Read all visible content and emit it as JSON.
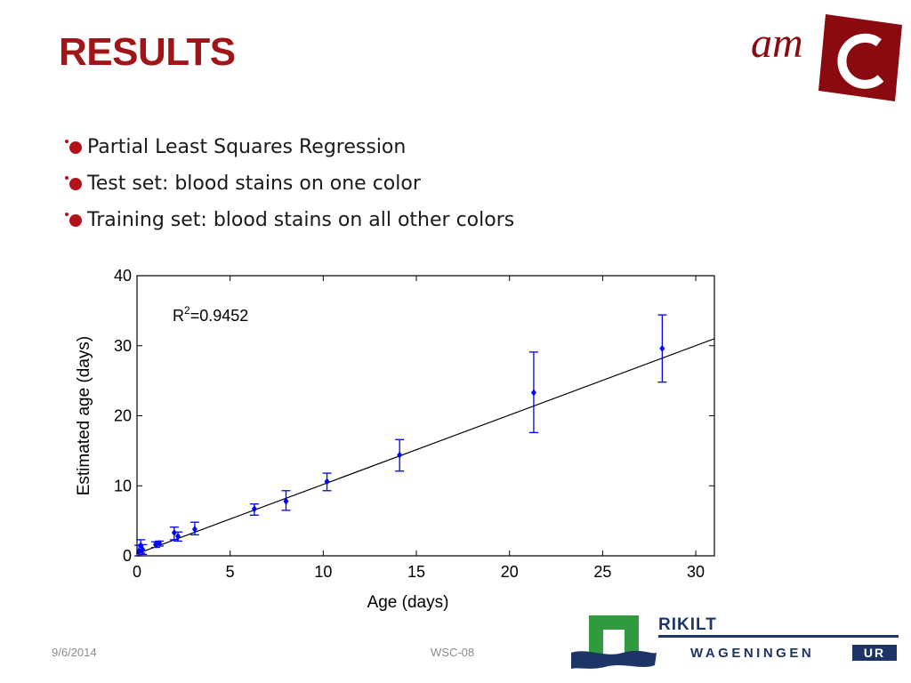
{
  "slide": {
    "title": "RESULTS",
    "bullets": [
      "Partial Least Squares Regression",
      "Test set: blood stains on one color",
      "Training set: blood stains on all other colors"
    ],
    "footer_date": "9/6/2014",
    "footer_center": "WSC-08",
    "logo_amc_text": "am",
    "logo_rikilt_text": "RIKILT",
    "logo_wageningen_text": "WAGENINGEN",
    "logo_ur_text": "UR"
  },
  "colors": {
    "title": "#a01518",
    "bullet": "#b3121a",
    "series": "#0000ff",
    "fit_line": "#000000",
    "amc_red": "#8b0a10",
    "rikilt_green": "#2f9a3e",
    "rikilt_navy": "#1d3566"
  },
  "chart_data": {
    "type": "scatter",
    "xlabel": "Age (days)",
    "ylabel": "Estimated age (days)",
    "xlim": [
      0,
      31
    ],
    "ylim": [
      0,
      40
    ],
    "xticks": [
      0,
      5,
      10,
      15,
      20,
      25,
      30
    ],
    "yticks": [
      0,
      10,
      20,
      30,
      40
    ],
    "annotation": "R²=0.9452",
    "annotation_base": "R",
    "annotation_sup": "2",
    "annotation_value": "=0.9452",
    "grid": false,
    "fit_line": {
      "x": [
        0,
        31
      ],
      "y": [
        0.3,
        31
      ]
    },
    "points": [
      {
        "x": 0.1,
        "y": 0.7,
        "ylow": 0.0,
        "yhigh": 1.5
      },
      {
        "x": 0.2,
        "y": 1.5,
        "ylow": 0.4,
        "yhigh": 2.3
      },
      {
        "x": 0.3,
        "y": 0.9,
        "ylow": 0.2,
        "yhigh": 1.6
      },
      {
        "x": 1.0,
        "y": 1.6,
        "ylow": 1.2,
        "yhigh": 2.0
      },
      {
        "x": 1.2,
        "y": 1.8,
        "ylow": 1.4,
        "yhigh": 2.1
      },
      {
        "x": 2.0,
        "y": 3.3,
        "ylow": 2.3,
        "yhigh": 4.1
      },
      {
        "x": 2.2,
        "y": 2.8,
        "ylow": 2.1,
        "yhigh": 3.4
      },
      {
        "x": 3.1,
        "y": 3.8,
        "ylow": 3.0,
        "yhigh": 4.8
      },
      {
        "x": 6.3,
        "y": 6.7,
        "ylow": 5.8,
        "yhigh": 7.4
      },
      {
        "x": 8.0,
        "y": 7.8,
        "ylow": 6.5,
        "yhigh": 9.3
      },
      {
        "x": 10.2,
        "y": 10.6,
        "ylow": 9.3,
        "yhigh": 11.8
      },
      {
        "x": 14.1,
        "y": 14.4,
        "ylow": 12.1,
        "yhigh": 16.6
      },
      {
        "x": 21.3,
        "y": 23.3,
        "ylow": 17.6,
        "yhigh": 29.1
      },
      {
        "x": 28.2,
        "y": 29.6,
        "ylow": 24.8,
        "yhigh": 34.4
      }
    ]
  }
}
